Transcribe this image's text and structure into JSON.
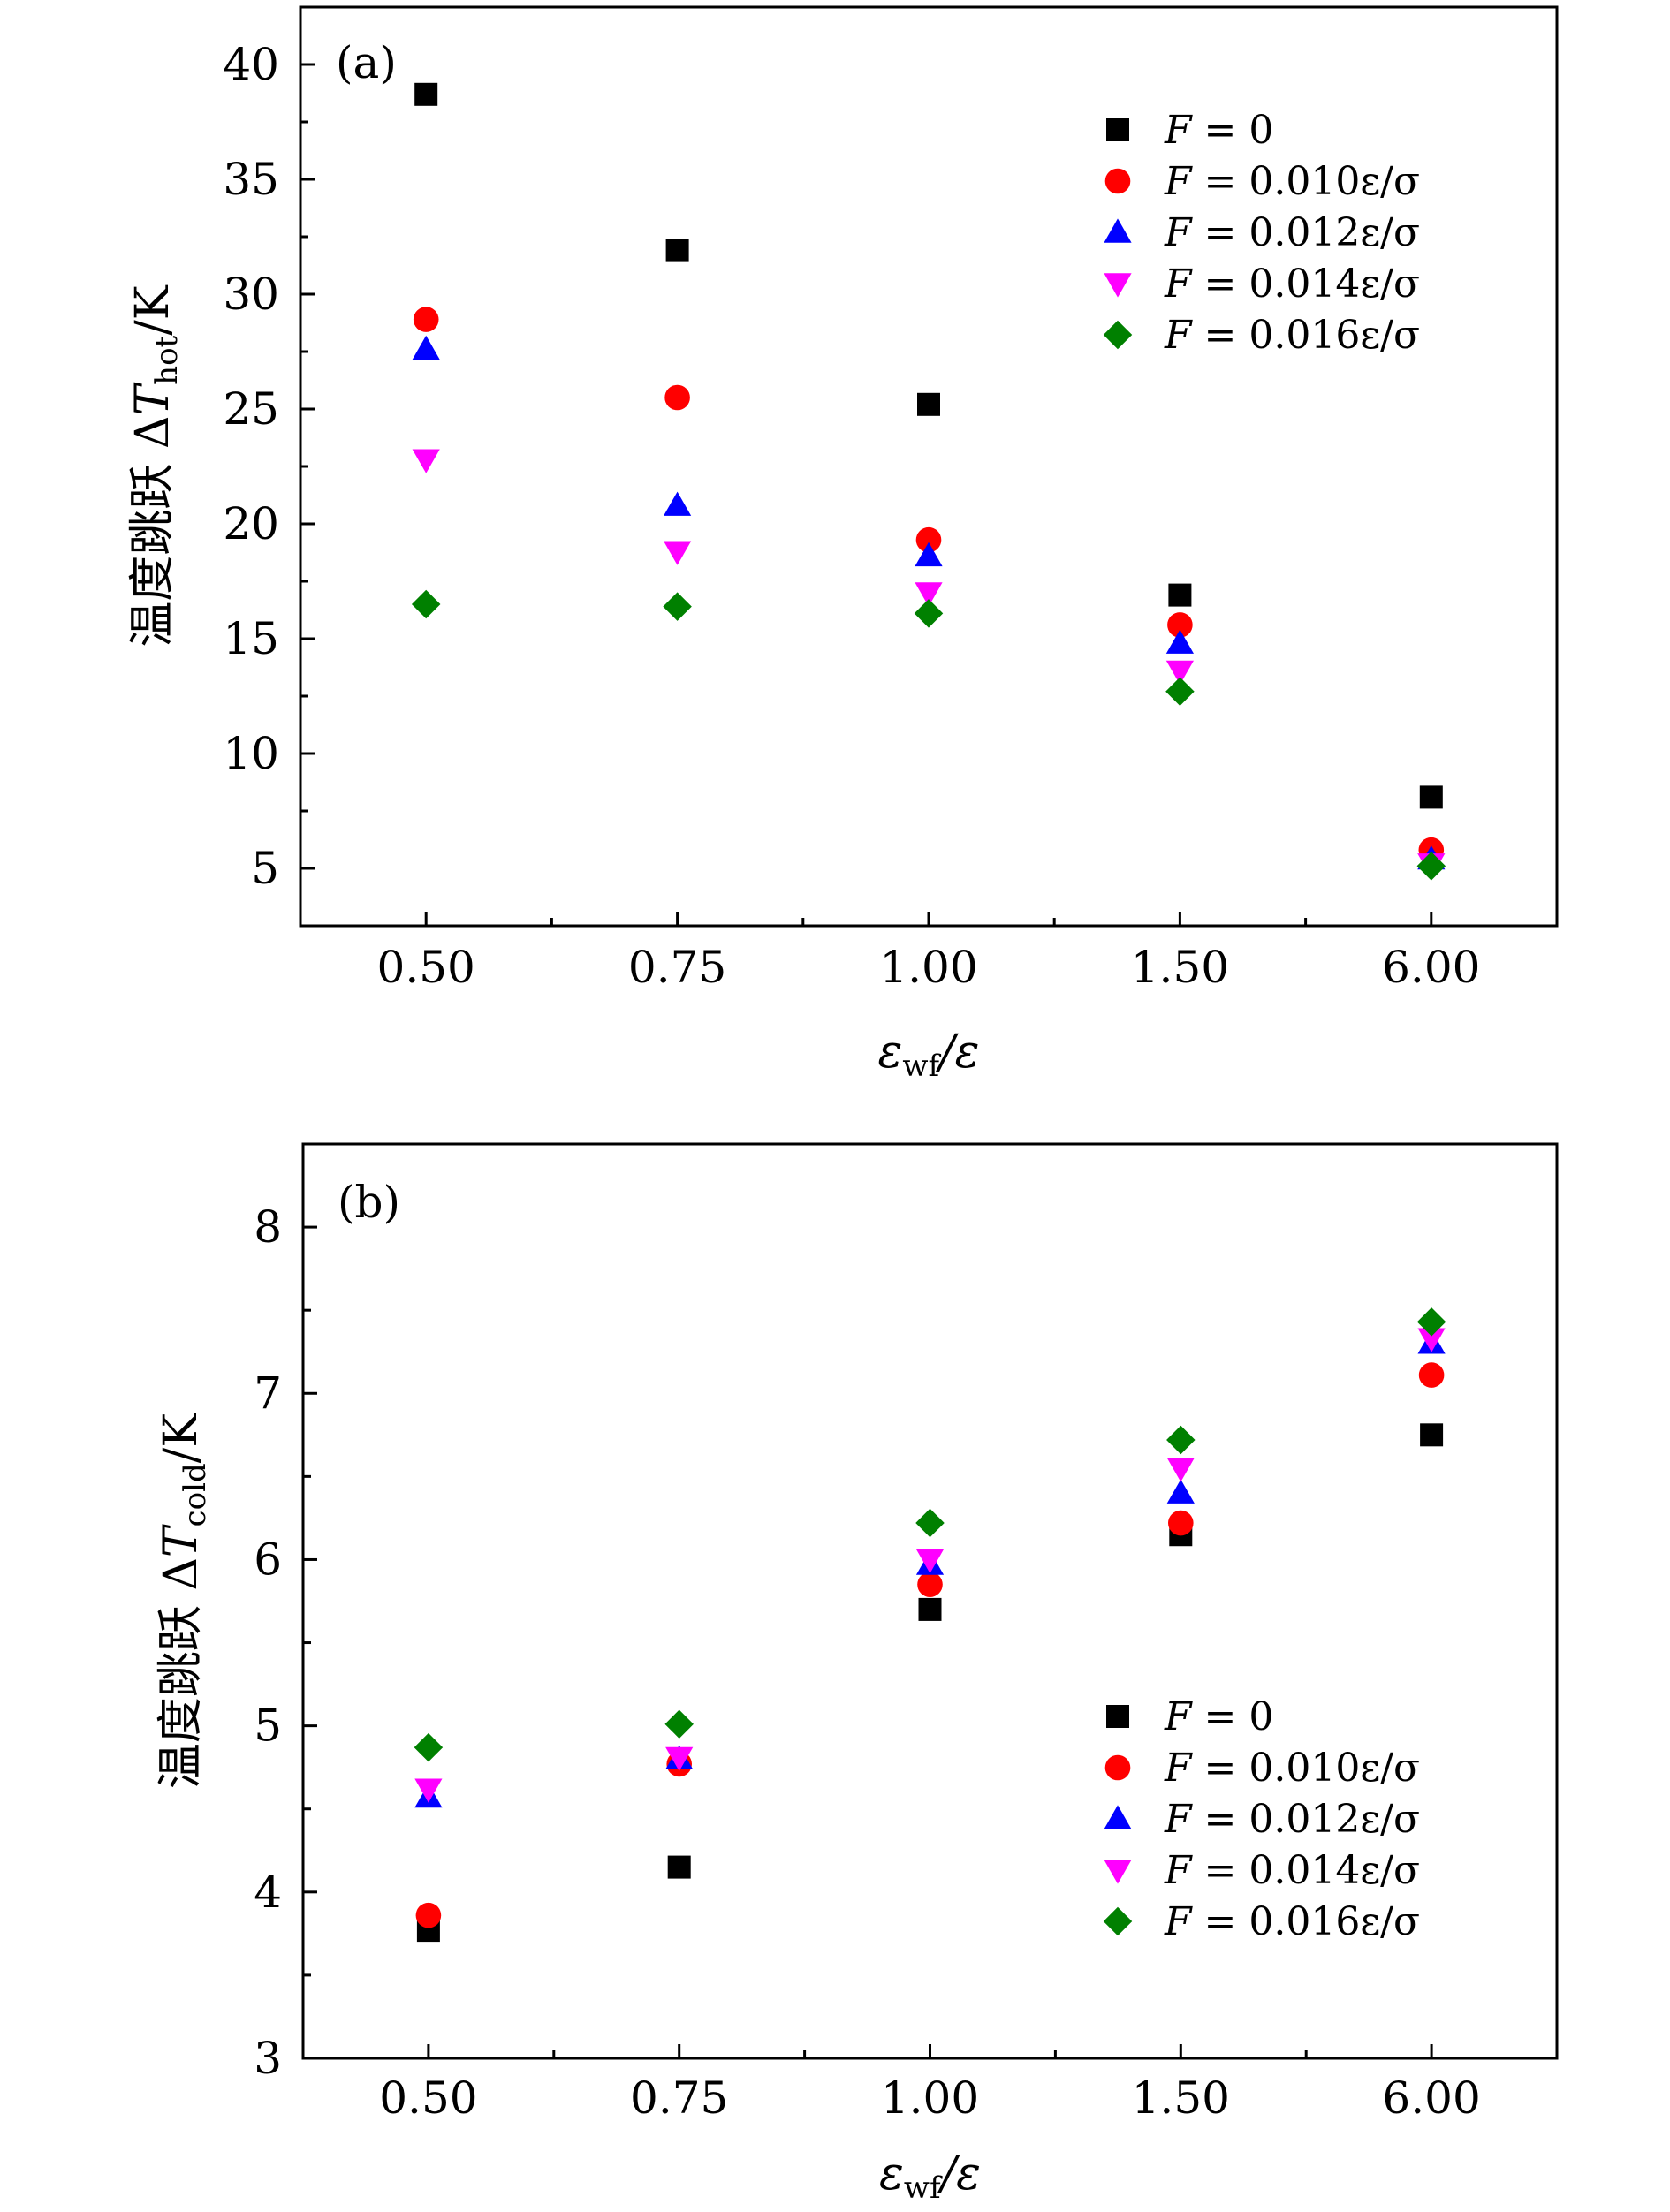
{
  "chart_data": [
    {
      "type": "scatter",
      "panel_label": "(a)",
      "categories": [
        "0.50",
        "0.75",
        "1.00",
        "1.50",
        "6.00"
      ],
      "xlabel": "εwf/ε",
      "xlabel_parts": {
        "main": "ε",
        "sub": "wf",
        "rest": "/ε"
      },
      "ylabel": "温度跳跃 ΔThot/K",
      "ylabel_parts": {
        "prefix": "温度跳跃 Δ",
        "var": "T",
        "sub": "hot",
        "rest": "/K"
      },
      "ylim": [
        2.5,
        42.5
      ],
      "yticks": [
        5,
        10,
        15,
        20,
        25,
        30,
        35,
        40
      ],
      "ytick_labels": [
        "5",
        "10",
        "15",
        "20",
        "25",
        "30",
        "35",
        "40"
      ],
      "legend_position": "top-right",
      "series": [
        {
          "name": "F = 0",
          "legend_var": "F",
          "legend_rest": " = 0",
          "marker": "square",
          "color": "#000000",
          "values": [
            38.7,
            31.9,
            25.2,
            16.9,
            8.1
          ]
        },
        {
          "name": "F = 0.010ε/σ",
          "legend_var": "F",
          "legend_rest": " = 0.010ε/σ",
          "marker": "circle",
          "color": "#ff0000",
          "values": [
            28.9,
            25.5,
            19.3,
            15.6,
            5.8
          ]
        },
        {
          "name": "F = 0.012ε/σ",
          "legend_var": "F",
          "legend_rest": " = 0.012ε/σ",
          "marker": "triangle-up",
          "color": "#0000ff",
          "values": [
            27.6,
            20.8,
            18.6,
            14.8,
            5.4
          ]
        },
        {
          "name": "F = 0.014ε/σ",
          "legend_var": "F",
          "legend_rest": " = 0.014ε/σ",
          "marker": "triangle-down",
          "color": "#ff00ff",
          "values": [
            22.8,
            18.8,
            17.0,
            13.6,
            5.2
          ]
        },
        {
          "name": "F = 0.016ε/σ",
          "legend_var": "F",
          "legend_rest": " = 0.016ε/σ",
          "marker": "diamond",
          "color": "#008000",
          "values": [
            16.5,
            16.4,
            16.1,
            12.7,
            5.1
          ]
        }
      ]
    },
    {
      "type": "scatter",
      "panel_label": "(b)",
      "categories": [
        "0.50",
        "0.75",
        "1.00",
        "1.50",
        "6.00"
      ],
      "xlabel": "εwf/ε",
      "xlabel_parts": {
        "main": "ε",
        "sub": "wf",
        "rest": "/ε"
      },
      "ylabel": "温度跳跃 ΔTcold/K",
      "ylabel_parts": {
        "prefix": "温度跳跃 Δ",
        "var": "T",
        "sub": "cold",
        "rest": "/K"
      },
      "ylim": [
        3,
        8.5
      ],
      "yticks": [
        3,
        4,
        5,
        6,
        7,
        8
      ],
      "ytick_labels": [
        "3",
        "4",
        "5",
        "6",
        "7",
        "8"
      ],
      "legend_position": "bottom-right",
      "series": [
        {
          "name": "F = 0",
          "legend_var": "F",
          "legend_rest": " = 0",
          "marker": "square",
          "color": "#000000",
          "values": [
            3.77,
            4.15,
            5.7,
            6.15,
            6.75
          ]
        },
        {
          "name": "F = 0.010ε/σ",
          "legend_var": "F",
          "legend_rest": " = 0.010ε/σ",
          "marker": "circle",
          "color": "#ff0000",
          "values": [
            3.86,
            4.77,
            5.85,
            6.22,
            7.11
          ]
        },
        {
          "name": "F = 0.012ε/σ",
          "legend_var": "F",
          "legend_rest": " = 0.012ε/σ",
          "marker": "triangle-up",
          "color": "#0000ff",
          "values": [
            4.57,
            4.8,
            5.97,
            6.4,
            7.3
          ]
        },
        {
          "name": "F = 0.014ε/σ",
          "legend_var": "F",
          "legend_rest": " = 0.014ε/σ",
          "marker": "triangle-down",
          "color": "#ff00ff",
          "values": [
            4.62,
            4.81,
            6.0,
            6.55,
            7.33
          ]
        },
        {
          "name": "F = 0.016ε/σ",
          "legend_var": "F",
          "legend_rest": " = 0.016ε/σ",
          "marker": "diamond",
          "color": "#008000",
          "values": [
            4.87,
            5.01,
            6.22,
            6.72,
            7.43
          ]
        }
      ]
    }
  ]
}
